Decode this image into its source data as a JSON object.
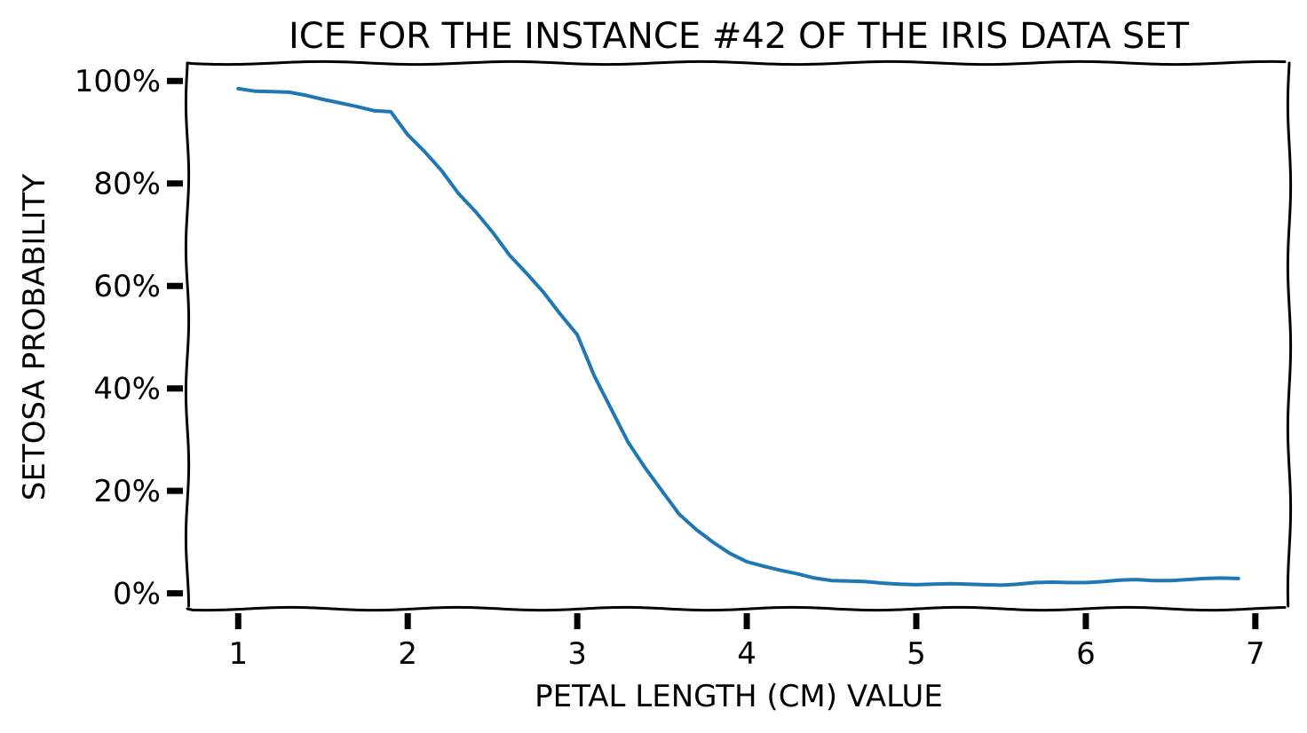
{
  "chart_data": {
    "type": "line",
    "title": "ICE FOR THE INSTANCE #42 OF THE IRIS DATA SET",
    "xlabel": "PETAL LENGTH (CM) VALUE",
    "ylabel": "SETOSA PROBABILITY",
    "xlim": [
      0.7,
      7.2
    ],
    "ylim": [
      -0.03,
      1.035
    ],
    "x_ticks": [
      1,
      2,
      3,
      4,
      5,
      6,
      7
    ],
    "x_tick_labels": [
      "1",
      "2",
      "3",
      "4",
      "5",
      "6",
      "7"
    ],
    "y_ticks": [
      0,
      0.2,
      0.4,
      0.6,
      0.8,
      1.0
    ],
    "y_tick_labels": [
      "0%",
      "20%",
      "40%",
      "60%",
      "80%",
      "100%"
    ],
    "grid": false,
    "style": "xkcd",
    "series": [
      {
        "color": "#1f77b4",
        "x": [
          1.0,
          1.1,
          1.2,
          1.3,
          1.4,
          1.5,
          1.6,
          1.7,
          1.8,
          1.9,
          2.0,
          2.1,
          2.2,
          2.3,
          2.4,
          2.5,
          2.6,
          2.7,
          2.8,
          2.9,
          3.0,
          3.1,
          3.2,
          3.3,
          3.4,
          3.5,
          3.6,
          3.7,
          3.8,
          3.9,
          4.0,
          4.1,
          4.2,
          4.3,
          4.4,
          4.5,
          4.6,
          4.7,
          4.8,
          4.9,
          5.0,
          5.1,
          5.2,
          5.3,
          5.4,
          5.5,
          5.6,
          5.7,
          5.8,
          5.9,
          6.0,
          6.1,
          6.2,
          6.3,
          6.4,
          6.5,
          6.6,
          6.7,
          6.8,
          6.9
        ],
        "y": [
          0.985,
          0.98,
          0.979,
          0.978,
          0.972,
          0.964,
          0.957,
          0.95,
          0.942,
          0.94,
          0.895,
          0.862,
          0.825,
          0.78,
          0.745,
          0.705,
          0.66,
          0.625,
          0.588,
          0.545,
          0.505,
          0.425,
          0.36,
          0.295,
          0.245,
          0.2,
          0.155,
          0.125,
          0.1,
          0.078,
          0.062,
          0.053,
          0.045,
          0.038,
          0.03,
          0.025,
          0.024,
          0.023,
          0.02,
          0.018,
          0.017,
          0.018,
          0.019,
          0.018,
          0.017,
          0.016,
          0.018,
          0.021,
          0.022,
          0.021,
          0.021,
          0.023,
          0.026,
          0.027,
          0.025,
          0.025,
          0.027,
          0.029,
          0.03,
          0.029
        ]
      }
    ]
  }
}
